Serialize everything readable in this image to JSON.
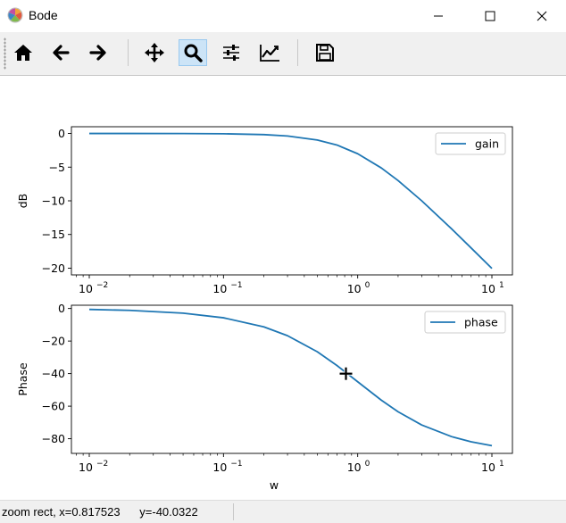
{
  "window": {
    "title": "Bode"
  },
  "toolbar": {
    "buttons": [
      {
        "name": "home",
        "icon": "home-icon"
      },
      {
        "name": "back",
        "icon": "arrow-left-icon"
      },
      {
        "name": "forward",
        "icon": "arrow-right-icon"
      },
      {
        "name": "pan",
        "icon": "move-icon"
      },
      {
        "name": "zoom",
        "icon": "magnifier-icon",
        "active": true
      },
      {
        "name": "configure-subplots",
        "icon": "sliders-icon"
      },
      {
        "name": "edit-axes",
        "icon": "line-chart-icon"
      },
      {
        "name": "save",
        "icon": "floppy-disk-icon"
      }
    ],
    "active_color": "#cce4f7"
  },
  "status": {
    "message": "zoom rect, x=0.817523      y=-40.0322"
  },
  "chart_data": [
    {
      "type": "line",
      "xscale": "log",
      "xlim": [
        0.01,
        10
      ],
      "ylim": [
        -21,
        1
      ],
      "ylabel": "dB",
      "xlabel": "",
      "yticks": [
        "0",
        "−5",
        "−10",
        "−15",
        "−20"
      ],
      "ytick_values": [
        0,
        -5,
        -10,
        -15,
        -20
      ],
      "xticks": [
        "10",
        "10",
        "10",
        "10"
      ],
      "xtick_exponents": [
        "−2",
        "−1",
        "0",
        "1"
      ],
      "xtick_values": [
        0.01,
        0.1,
        1,
        10
      ],
      "legend": {
        "position": "top-right",
        "entries": [
          "gain"
        ]
      },
      "series": [
        {
          "name": "gain",
          "color": "#1f77b4",
          "x": [
            0.01,
            0.02,
            0.05,
            0.1,
            0.2,
            0.3,
            0.5,
            0.7,
            1,
            1.5,
            2,
            3,
            5,
            7,
            10
          ],
          "y": [
            0,
            -0.002,
            -0.011,
            -0.043,
            -0.17,
            -0.37,
            -0.97,
            -1.71,
            -3.01,
            -5.12,
            -6.99,
            -10.0,
            -14.15,
            -17.0,
            -20.04
          ]
        }
      ]
    },
    {
      "type": "line",
      "xscale": "log",
      "xlim": [
        0.01,
        10
      ],
      "ylim": [
        -89,
        2
      ],
      "ylabel": "Phase",
      "xlabel": "w",
      "yticks": [
        "0",
        "−20",
        "−40",
        "−60",
        "−80"
      ],
      "ytick_values": [
        0,
        -20,
        -40,
        -60,
        -80
      ],
      "xticks": [
        "10",
        "10",
        "10",
        "10"
      ],
      "xtick_exponents": [
        "−2",
        "−1",
        "0",
        "1"
      ],
      "xtick_values": [
        0.01,
        0.1,
        1,
        10
      ],
      "legend": {
        "position": "top-right",
        "entries": [
          "phase"
        ]
      },
      "cursor": {
        "x": 0.817523,
        "y": -40.0322
      },
      "series": [
        {
          "name": "phase",
          "color": "#1f77b4",
          "x": [
            0.01,
            0.02,
            0.05,
            0.1,
            0.2,
            0.3,
            0.5,
            0.7,
            1,
            1.5,
            2,
            3,
            5,
            7,
            10
          ],
          "y": [
            -0.57,
            -1.15,
            -2.86,
            -5.71,
            -11.31,
            -16.7,
            -26.57,
            -34.99,
            -45,
            -56.31,
            -63.43,
            -71.57,
            -78.69,
            -81.87,
            -84.29
          ]
        }
      ]
    }
  ]
}
